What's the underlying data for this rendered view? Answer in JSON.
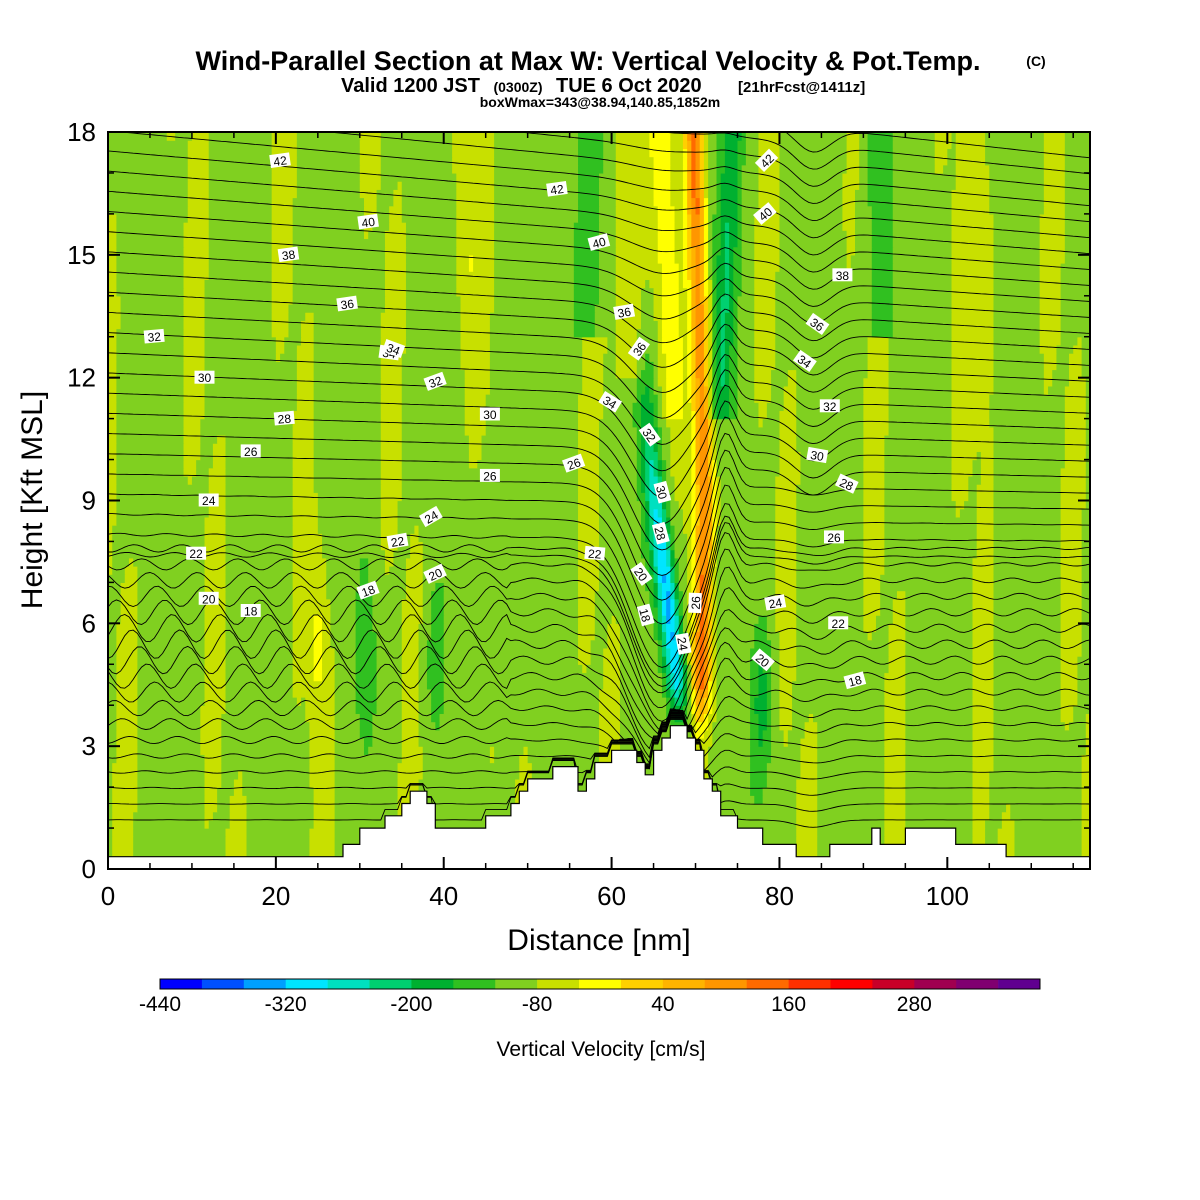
{
  "chart_data": {
    "type": "heatmap",
    "title": "Wind-Parallel Section at Max W: Vertical Velocity & Pot.Temp.",
    "title_mark": "(C)",
    "subtitle_parts": [
      "Valid 1200 JST",
      "(0300Z)",
      "TUE 6 Oct 2020",
      "[21hrFcst@1411z]"
    ],
    "subtitle2": "boxWmax=343@38.94,140.85,1852m",
    "xlabel": "Distance [nm]",
    "ylabel": "Height [Kft MSL]",
    "xlim": [
      0,
      117
    ],
    "ylim": [
      0,
      18
    ],
    "x_ticks": [
      0,
      20,
      40,
      60,
      80,
      100
    ],
    "y_ticks": [
      0,
      3,
      6,
      9,
      12,
      15,
      18
    ],
    "colorbar": {
      "label": "Vertical Velocity [cm/s]",
      "tick_labels": [
        "-440",
        "-320",
        "-200",
        "-80",
        "40",
        "160",
        "280"
      ],
      "colors": [
        "#0000ff",
        "#0050ff",
        "#00a0ff",
        "#00e5ff",
        "#00e0c0",
        "#00d070",
        "#00b030",
        "#30c020",
        "#80d020",
        "#c8e000",
        "#ffff00",
        "#ffd000",
        "#ffb400",
        "#ff9600",
        "#ff6a00",
        "#ff3000",
        "#ff0000",
        "#c80028",
        "#a00050",
        "#800070",
        "#600090"
      ]
    },
    "terrain_kft": [
      [
        0,
        0.3
      ],
      [
        28,
        0.3
      ],
      [
        28,
        0.6
      ],
      [
        30,
        0.6
      ],
      [
        30,
        1.0
      ],
      [
        33,
        1.0
      ],
      [
        33,
        1.3
      ],
      [
        35,
        1.3
      ],
      [
        35,
        1.6
      ],
      [
        36,
        1.6
      ],
      [
        36,
        1.9
      ],
      [
        38,
        1.9
      ],
      [
        38,
        1.6
      ],
      [
        39,
        1.6
      ],
      [
        39,
        1.0
      ],
      [
        45,
        1.0
      ],
      [
        45,
        1.3
      ],
      [
        48,
        1.3
      ],
      [
        48,
        1.6
      ],
      [
        49,
        1.6
      ],
      [
        49,
        1.9
      ],
      [
        50,
        1.9
      ],
      [
        50,
        2.2
      ],
      [
        53,
        2.2
      ],
      [
        53,
        2.5
      ],
      [
        56,
        2.5
      ],
      [
        56,
        1.9
      ],
      [
        57,
        1.9
      ],
      [
        57,
        2.2
      ],
      [
        58,
        2.2
      ],
      [
        58,
        2.6
      ],
      [
        60,
        2.6
      ],
      [
        60,
        2.9
      ],
      [
        63,
        2.9
      ],
      [
        63,
        2.6
      ],
      [
        64,
        2.6
      ],
      [
        64,
        2.3
      ],
      [
        65,
        2.3
      ],
      [
        65,
        2.9
      ],
      [
        66,
        2.9
      ],
      [
        66,
        3.2
      ],
      [
        67,
        3.2
      ],
      [
        67,
        3.5
      ],
      [
        69,
        3.5
      ],
      [
        69,
        3.2
      ],
      [
        70,
        3.2
      ],
      [
        70,
        2.9
      ],
      [
        71,
        2.9
      ],
      [
        71,
        2.2
      ],
      [
        72,
        2.2
      ],
      [
        72,
        1.9
      ],
      [
        73,
        1.9
      ],
      [
        73,
        1.3
      ],
      [
        75,
        1.3
      ],
      [
        75,
        1.0
      ],
      [
        78,
        1.0
      ],
      [
        78,
        0.6
      ],
      [
        82,
        0.6
      ],
      [
        82,
        0.3
      ],
      [
        86,
        0.3
      ],
      [
        86,
        0.6
      ],
      [
        91,
        0.6
      ],
      [
        91,
        1.0
      ],
      [
        92,
        1.0
      ],
      [
        92,
        0.6
      ],
      [
        95,
        0.6
      ],
      [
        95,
        1.0
      ],
      [
        101,
        1.0
      ],
      [
        101,
        0.6
      ],
      [
        107,
        0.6
      ],
      [
        107,
        0.3
      ],
      [
        117,
        0.3
      ]
    ],
    "theta_labels": [
      "18",
      "20",
      "22",
      "24",
      "26",
      "28",
      "30",
      "32",
      "34",
      "36",
      "38",
      "40",
      "42"
    ],
    "grid": false
  }
}
